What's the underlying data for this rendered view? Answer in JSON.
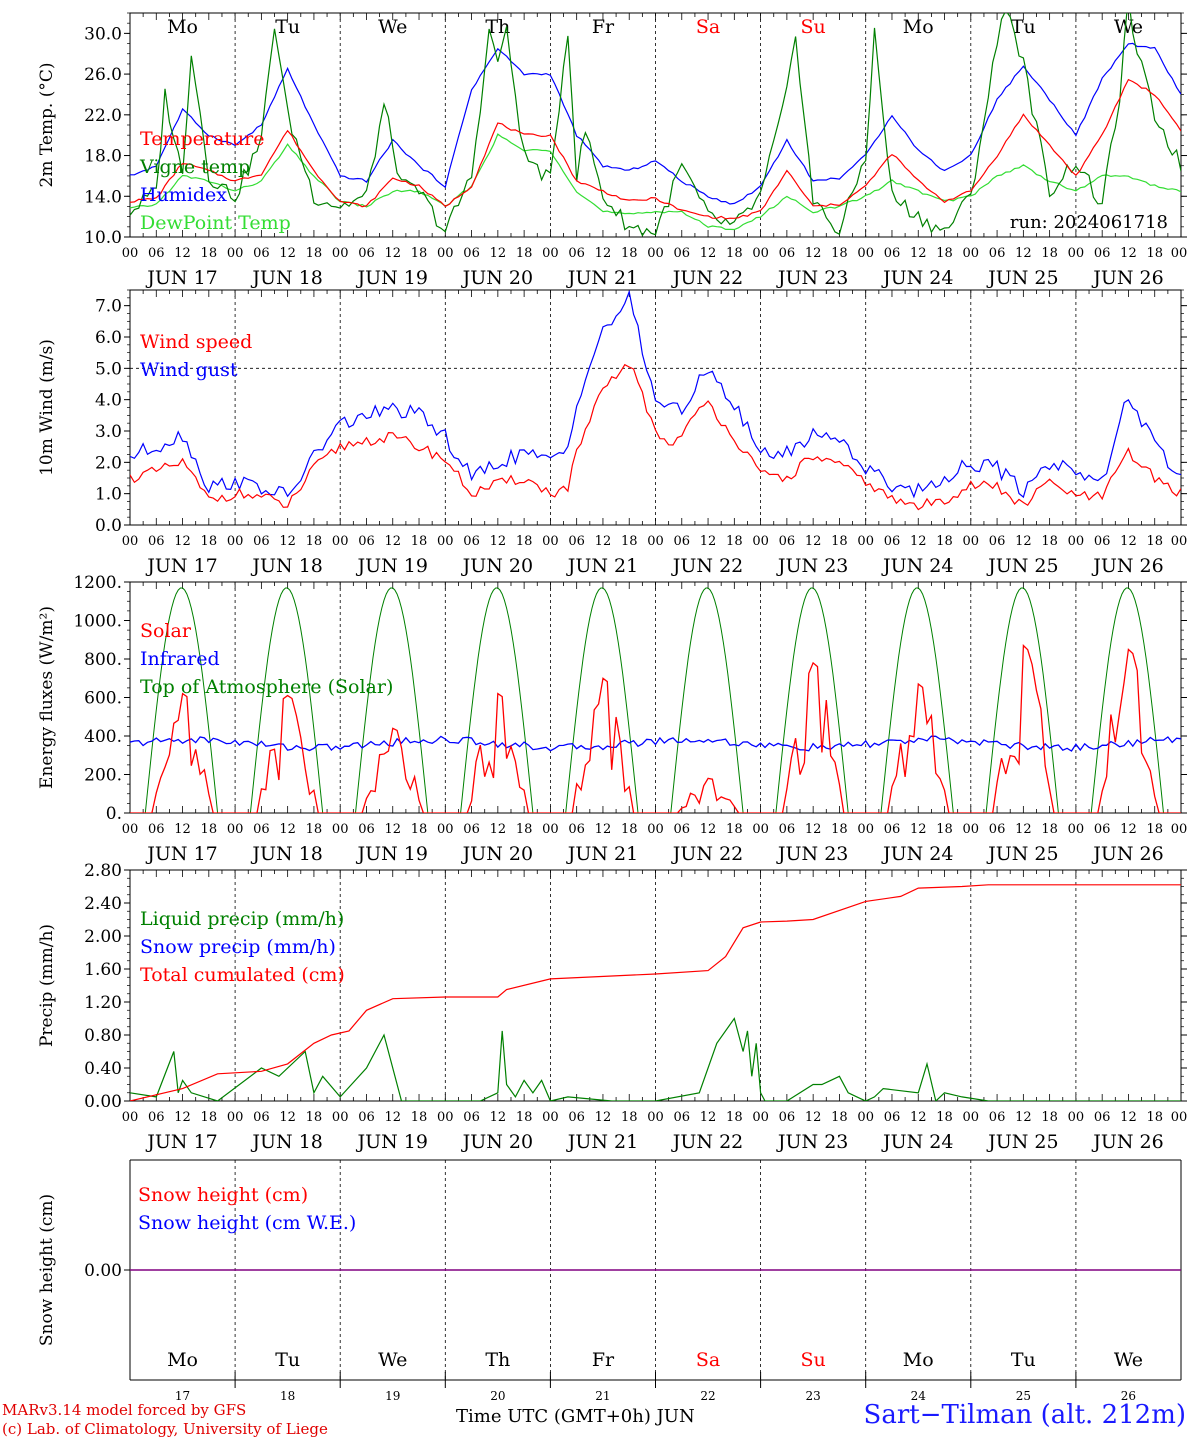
{
  "days": [
    {
      "abbr": "Mo",
      "date": "JUN 17",
      "num": "17",
      "weekend": false
    },
    {
      "abbr": "Tu",
      "date": "JUN 18",
      "num": "18",
      "weekend": false
    },
    {
      "abbr": "We",
      "date": "JUN 19",
      "num": "19",
      "weekend": false
    },
    {
      "abbr": "Th",
      "date": "JUN 20",
      "num": "20",
      "weekend": false
    },
    {
      "abbr": "Fr",
      "date": "JUN 21",
      "num": "21",
      "weekend": false
    },
    {
      "abbr": "Sa",
      "date": "JUN 22",
      "num": "22",
      "weekend": true
    },
    {
      "abbr": "Su",
      "date": "JUN 23",
      "num": "23",
      "weekend": true
    },
    {
      "abbr": "Mo",
      "date": "JUN 24",
      "num": "24",
      "weekend": false
    },
    {
      "abbr": "Tu",
      "date": "JUN 25",
      "num": "25",
      "weekend": false
    },
    {
      "abbr": "We",
      "date": "JUN 26",
      "num": "26",
      "weekend": false
    }
  ],
  "hour_ticks": [
    "00",
    "06",
    "12",
    "18"
  ],
  "colors": {
    "red": "#ff0000",
    "green": "#008000",
    "lightgreen": "#33dd33",
    "blue": "#0000ff",
    "purple": "#800080",
    "black": "#000000"
  },
  "footer": {
    "credit1": "MARv3.14 model forced by GFS",
    "credit2": "(c) Lab. of Climatology, University of Liege",
    "time_label": "Time UTC (GMT+0h) JUN",
    "station": "Sart−Tilman (alt. 212m)"
  },
  "chart_data": [
    {
      "type": "line",
      "ylabel": "2m Temp. (°C)",
      "ylim": [
        10,
        32
      ],
      "yticks": [
        "10.0",
        "14.0",
        "18.0",
        "22.0",
        "26.0",
        "30.0"
      ],
      "annotation": "run: 2024061718",
      "x_unit": "hours since JUN 17 00 UTC",
      "series": [
        {
          "name": "Temperature",
          "color": "#ff0000",
          "x": [
            0,
            6,
            12,
            18,
            24,
            30,
            36,
            42,
            48,
            54,
            60,
            66,
            72,
            78,
            84,
            90,
            96,
            102,
            108,
            114,
            120,
            126,
            132,
            138,
            144,
            150,
            156,
            162,
            168,
            174,
            180,
            186,
            192,
            198,
            204,
            210,
            216,
            222,
            228,
            234,
            240
          ],
          "values": [
            13.5,
            13.8,
            17.3,
            16.5,
            15.5,
            16.2,
            20.5,
            16.5,
            13.5,
            13.0,
            15.8,
            15.0,
            13.0,
            15.0,
            21.2,
            20.0,
            20.0,
            15.5,
            14.5,
            13.5,
            13.8,
            12.6,
            12.0,
            11.8,
            12.5,
            16.5,
            13.0,
            13.2,
            15.0,
            18.2,
            15.5,
            13.5,
            14.5,
            18.0,
            22.0,
            19.0,
            16.0,
            20.0,
            25.5,
            24.0,
            20.5
          ]
        },
        {
          "name": "Vigne temp",
          "color": "#008000",
          "x": [
            0,
            6,
            8,
            12,
            14,
            18,
            24,
            30,
            33,
            36,
            42,
            48,
            54,
            58,
            62,
            66,
            72,
            78,
            82,
            84,
            86,
            90,
            96,
            100,
            102,
            104,
            108,
            114,
            120,
            126,
            132,
            138,
            144,
            150,
            152,
            156,
            162,
            168,
            170,
            174,
            180,
            186,
            192,
            198,
            200,
            204,
            210,
            216,
            222,
            226,
            228,
            230,
            234,
            240
          ],
          "values": [
            12.5,
            14.5,
            24.0,
            16.0,
            28.5,
            16.0,
            14.0,
            19.5,
            31.0,
            22.0,
            14.0,
            13.0,
            14.0,
            23.0,
            15.0,
            14.5,
            10.5,
            16.0,
            30.0,
            27.5,
            30.0,
            18.0,
            15.5,
            30.5,
            16.0,
            20.5,
            14.0,
            11.0,
            10.5,
            17.0,
            12.0,
            11.0,
            14.0,
            24.0,
            30.0,
            13.5,
            10.5,
            18.0,
            30.0,
            14.0,
            12.0,
            10.5,
            14.0,
            29.0,
            33.0,
            27.0,
            14.5,
            17.5,
            13.0,
            24.0,
            33.0,
            28.0,
            22.0,
            17.0
          ]
        },
        {
          "name": "Humidex",
          "color": "#0000ff",
          "x": [
            0,
            6,
            12,
            18,
            24,
            30,
            36,
            42,
            48,
            54,
            60,
            66,
            72,
            78,
            84,
            90,
            96,
            102,
            108,
            114,
            120,
            126,
            132,
            138,
            144,
            150,
            156,
            162,
            168,
            174,
            180,
            186,
            192,
            198,
            204,
            210,
            216,
            222,
            228,
            234,
            240
          ],
          "values": [
            16.0,
            17.0,
            22.5,
            20.0,
            19.0,
            21.0,
            26.5,
            21.0,
            16.0,
            15.5,
            19.5,
            17.0,
            15.0,
            24.5,
            28.5,
            26.0,
            26.0,
            20.0,
            17.0,
            16.5,
            17.5,
            15.5,
            14.0,
            13.2,
            15.0,
            19.5,
            15.5,
            15.8,
            18.0,
            22.0,
            18.5,
            16.5,
            18.0,
            23.5,
            26.8,
            23.5,
            20.0,
            25.5,
            29.0,
            28.5,
            24.0
          ]
        },
        {
          "name": "DewPoint Temp",
          "color": "#33dd33",
          "x": [
            0,
            6,
            12,
            18,
            24,
            30,
            36,
            42,
            48,
            54,
            60,
            66,
            72,
            78,
            84,
            90,
            96,
            102,
            108,
            114,
            120,
            126,
            132,
            138,
            144,
            150,
            156,
            162,
            168,
            174,
            180,
            186,
            192,
            198,
            204,
            210,
            216,
            222,
            228,
            234,
            240
          ],
          "values": [
            12.8,
            13.2,
            16.0,
            15.5,
            14.5,
            15.5,
            19.0,
            16.0,
            13.5,
            13.0,
            14.5,
            14.5,
            13.0,
            15.0,
            20.0,
            18.5,
            18.5,
            14.5,
            12.5,
            12.2,
            12.5,
            12.5,
            11.0,
            10.8,
            12.0,
            14.0,
            12.5,
            13.0,
            14.0,
            15.5,
            14.5,
            13.5,
            14.0,
            16.0,
            17.0,
            15.5,
            14.5,
            16.0,
            16.0,
            15.0,
            14.5
          ]
        }
      ]
    },
    {
      "type": "line",
      "ylabel": "10m Wind (m/s)",
      "ylim": [
        0,
        7.5
      ],
      "yticks": [
        "0.0",
        "1.0",
        "2.0",
        "3.0",
        "4.0",
        "5.0",
        "6.0",
        "7.0"
      ],
      "reference_line": 5.0,
      "x_unit": "hours since JUN 17 00 UTC",
      "series": [
        {
          "name": "Wind speed",
          "color": "#ff0000",
          "x": [
            0,
            6,
            12,
            18,
            24,
            30,
            36,
            42,
            48,
            54,
            60,
            66,
            72,
            78,
            84,
            90,
            96,
            100,
            102,
            108,
            114,
            120,
            124,
            126,
            132,
            138,
            144,
            150,
            156,
            162,
            168,
            174,
            180,
            186,
            192,
            198,
            204,
            210,
            216,
            222,
            228,
            234,
            240
          ],
          "values": [
            1.5,
            1.7,
            2.0,
            0.8,
            1.0,
            0.9,
            0.6,
            1.8,
            2.5,
            2.7,
            2.8,
            2.5,
            2.1,
            1.0,
            1.3,
            1.5,
            1.0,
            1.2,
            2.3,
            4.3,
            5.2,
            3.0,
            2.5,
            3.0,
            3.9,
            2.8,
            1.6,
            1.5,
            2.2,
            1.9,
            1.4,
            0.8,
            0.6,
            0.8,
            1.3,
            1.2,
            0.6,
            1.4,
            0.9,
            0.9,
            2.3,
            1.5,
            1.0
          ]
        },
        {
          "name": "Wind gust",
          "color": "#0000ff",
          "x": [
            0,
            6,
            12,
            18,
            24,
            30,
            36,
            42,
            48,
            54,
            60,
            66,
            72,
            78,
            84,
            90,
            96,
            100,
            102,
            108,
            114,
            120,
            124,
            126,
            132,
            138,
            144,
            150,
            156,
            162,
            168,
            174,
            180,
            186,
            192,
            198,
            204,
            210,
            216,
            222,
            228,
            234,
            240
          ],
          "values": [
            2.2,
            2.5,
            2.9,
            1.2,
            1.4,
            1.2,
            0.9,
            2.2,
            3.2,
            3.5,
            3.7,
            3.5,
            2.8,
            1.5,
            2.0,
            2.3,
            2.0,
            2.5,
            4.0,
            6.2,
            7.2,
            4.0,
            3.8,
            3.5,
            5.1,
            3.8,
            2.3,
            2.3,
            2.9,
            2.8,
            1.8,
            1.3,
            1.1,
            1.5,
            2.0,
            1.8,
            1.1,
            2.0,
            1.8,
            1.3,
            4.2,
            2.5,
            1.5
          ]
        }
      ]
    },
    {
      "type": "line",
      "ylabel": "Energy fluxes (W/m²)",
      "ylim": [
        0,
        1200
      ],
      "yticks": [
        "0.",
        "200.",
        "400.",
        "600.",
        "800.",
        "1000.",
        "1200."
      ],
      "x_unit": "hours since JUN 17 00 UTC",
      "series": [
        {
          "name": "Solar",
          "color": "#ff0000",
          "day_peaks": [
            620,
            610,
            440,
            620,
            700,
            180,
            780,
            670,
            870,
            850
          ]
        },
        {
          "name": "Infrared",
          "color": "#0000ff",
          "approx_range": [
            300,
            410
          ]
        },
        {
          "name": "Top of Atmosphere (Solar)",
          "color": "#008000",
          "daily_max": 1170,
          "sunrise_hour": 3.5,
          "sunset_hour": 20.0
        }
      ]
    },
    {
      "type": "line",
      "ylabel": "Precip (mm/h)",
      "ylim": [
        0,
        2.8
      ],
      "yticks": [
        "0.00",
        "0.40",
        "0.80",
        "1.20",
        "1.60",
        "2.00",
        "2.40",
        "2.80"
      ],
      "x_unit": "hours since JUN 17 00 UTC",
      "series": [
        {
          "name": "Liquid precip (mm/h)",
          "color": "#008000",
          "x": [
            0,
            6,
            10,
            11,
            12,
            14,
            20,
            30,
            34,
            40,
            42,
            44,
            48,
            54,
            58,
            62,
            64,
            70,
            80,
            84,
            85,
            86,
            88,
            90,
            92,
            94,
            96,
            100,
            110,
            120,
            130,
            134,
            138,
            140,
            141,
            142,
            143,
            144,
            145,
            146,
            150,
            156,
            158,
            160,
            162,
            164,
            166,
            168,
            170,
            172,
            180,
            182,
            184,
            186,
            190,
            196,
            240
          ],
          "values": [
            0.1,
            0.05,
            0.6,
            0.1,
            0.25,
            0.1,
            0.0,
            0.4,
            0.3,
            0.6,
            0.1,
            0.3,
            0.05,
            0.4,
            0.8,
            0.0,
            0.0,
            0.0,
            0.0,
            0.1,
            0.85,
            0.2,
            0.05,
            0.25,
            0.1,
            0.25,
            0.0,
            0.05,
            0.0,
            0.0,
            0.1,
            0.7,
            1.0,
            0.6,
            0.85,
            0.3,
            0.7,
            0.1,
            0.0,
            0.0,
            0.0,
            0.2,
            0.2,
            0.25,
            0.3,
            0.1,
            0.05,
            0.0,
            0.05,
            0.15,
            0.1,
            0.45,
            0.0,
            0.1,
            0.05,
            0.0,
            0.0
          ]
        },
        {
          "name": "Snow precip (mm/h)",
          "color": "#0000ff",
          "values": []
        },
        {
          "name": "Total cumulated (cm)",
          "color": "#ff0000",
          "x": [
            0,
            12,
            20,
            30,
            36,
            42,
            46,
            50,
            54,
            60,
            72,
            84,
            86,
            96,
            120,
            132,
            136,
            140,
            144,
            150,
            156,
            168,
            176,
            180,
            190,
            196,
            200,
            204,
            240
          ],
          "values": [
            0.0,
            0.15,
            0.33,
            0.36,
            0.45,
            0.7,
            0.8,
            0.85,
            1.1,
            1.24,
            1.26,
            1.26,
            1.35,
            1.48,
            1.54,
            1.58,
            1.75,
            2.1,
            2.17,
            2.18,
            2.2,
            2.42,
            2.48,
            2.58,
            2.6,
            2.62,
            2.62,
            2.62,
            2.62
          ]
        }
      ]
    },
    {
      "type": "line",
      "ylabel": "Snow height (cm)",
      "yticks": [
        "0.00"
      ],
      "series": [
        {
          "name": "Snow height (cm)",
          "color": "#ff0000",
          "values": [
            0,
            0
          ]
        },
        {
          "name": "Snow height (cm W.E.)",
          "color": "#0000ff",
          "values": [
            0,
            0
          ]
        }
      ]
    }
  ]
}
